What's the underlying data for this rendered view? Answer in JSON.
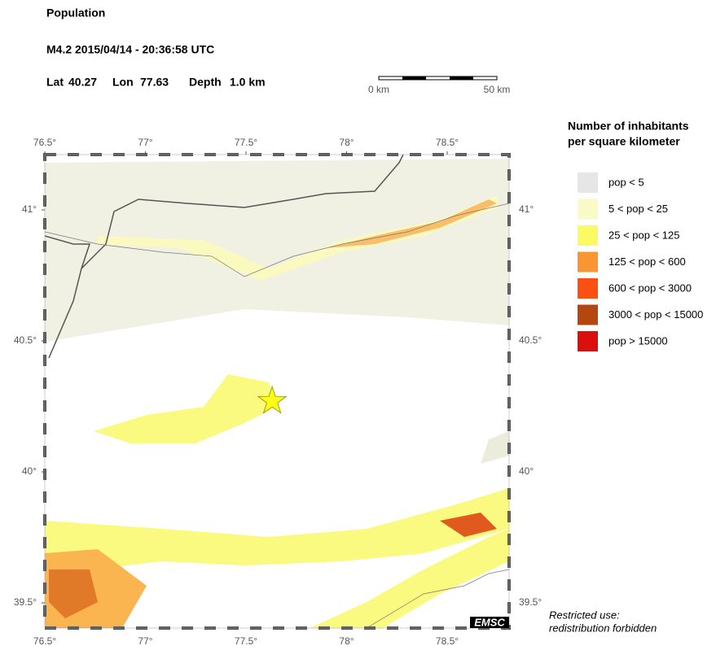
{
  "header": {
    "title": "Population",
    "event": "M4.2  2015/04/14 - 20:36:58 UTC",
    "lat": {
      "label": "Lat",
      "value": 40.27
    },
    "lon": {
      "label": "Lon",
      "value": 77.63
    },
    "depth": {
      "label": "Depth",
      "value": "1.0 km"
    }
  },
  "scale": {
    "start": "0 km",
    "end": "50 km"
  },
  "map": {
    "lon_ticks": [
      {
        "value": 76.5,
        "label": "76.5°"
      },
      {
        "value": 77,
        "label": "77°"
      },
      {
        "value": 77.5,
        "label": "77.5°"
      },
      {
        "value": 78,
        "label": "78°"
      },
      {
        "value": 78.5,
        "label": "78.5°"
      }
    ],
    "lat_ticks": [
      {
        "value": 41,
        "label": "41°"
      },
      {
        "value": 40.5,
        "label": "40.5°"
      },
      {
        "value": 40,
        "label": "40°"
      },
      {
        "value": 39.5,
        "label": "39.5°"
      }
    ],
    "credit": "EMSC"
  },
  "legend": {
    "title": [
      "Number of inhabitants",
      "per square kilometer"
    ],
    "items": [
      {
        "label": "pop < 5",
        "color": "#e6e6e6"
      },
      {
        "label": "5 < pop < 25",
        "color": "#fafac8"
      },
      {
        "label": "25 < pop < 125",
        "color": "#fafa64"
      },
      {
        "label": "125 < pop < 600",
        "color": "#fa9632"
      },
      {
        "label": "600 < pop < 3000",
        "color": "#fa5014"
      },
      {
        "label": "3000 < pop < 15000",
        "color": "#b4460f"
      },
      {
        "label": "pop > 15000",
        "color": "#dc0f0f"
      }
    ]
  },
  "footer": [
    "Restricted use:",
    "redistribution forbidden"
  ]
}
